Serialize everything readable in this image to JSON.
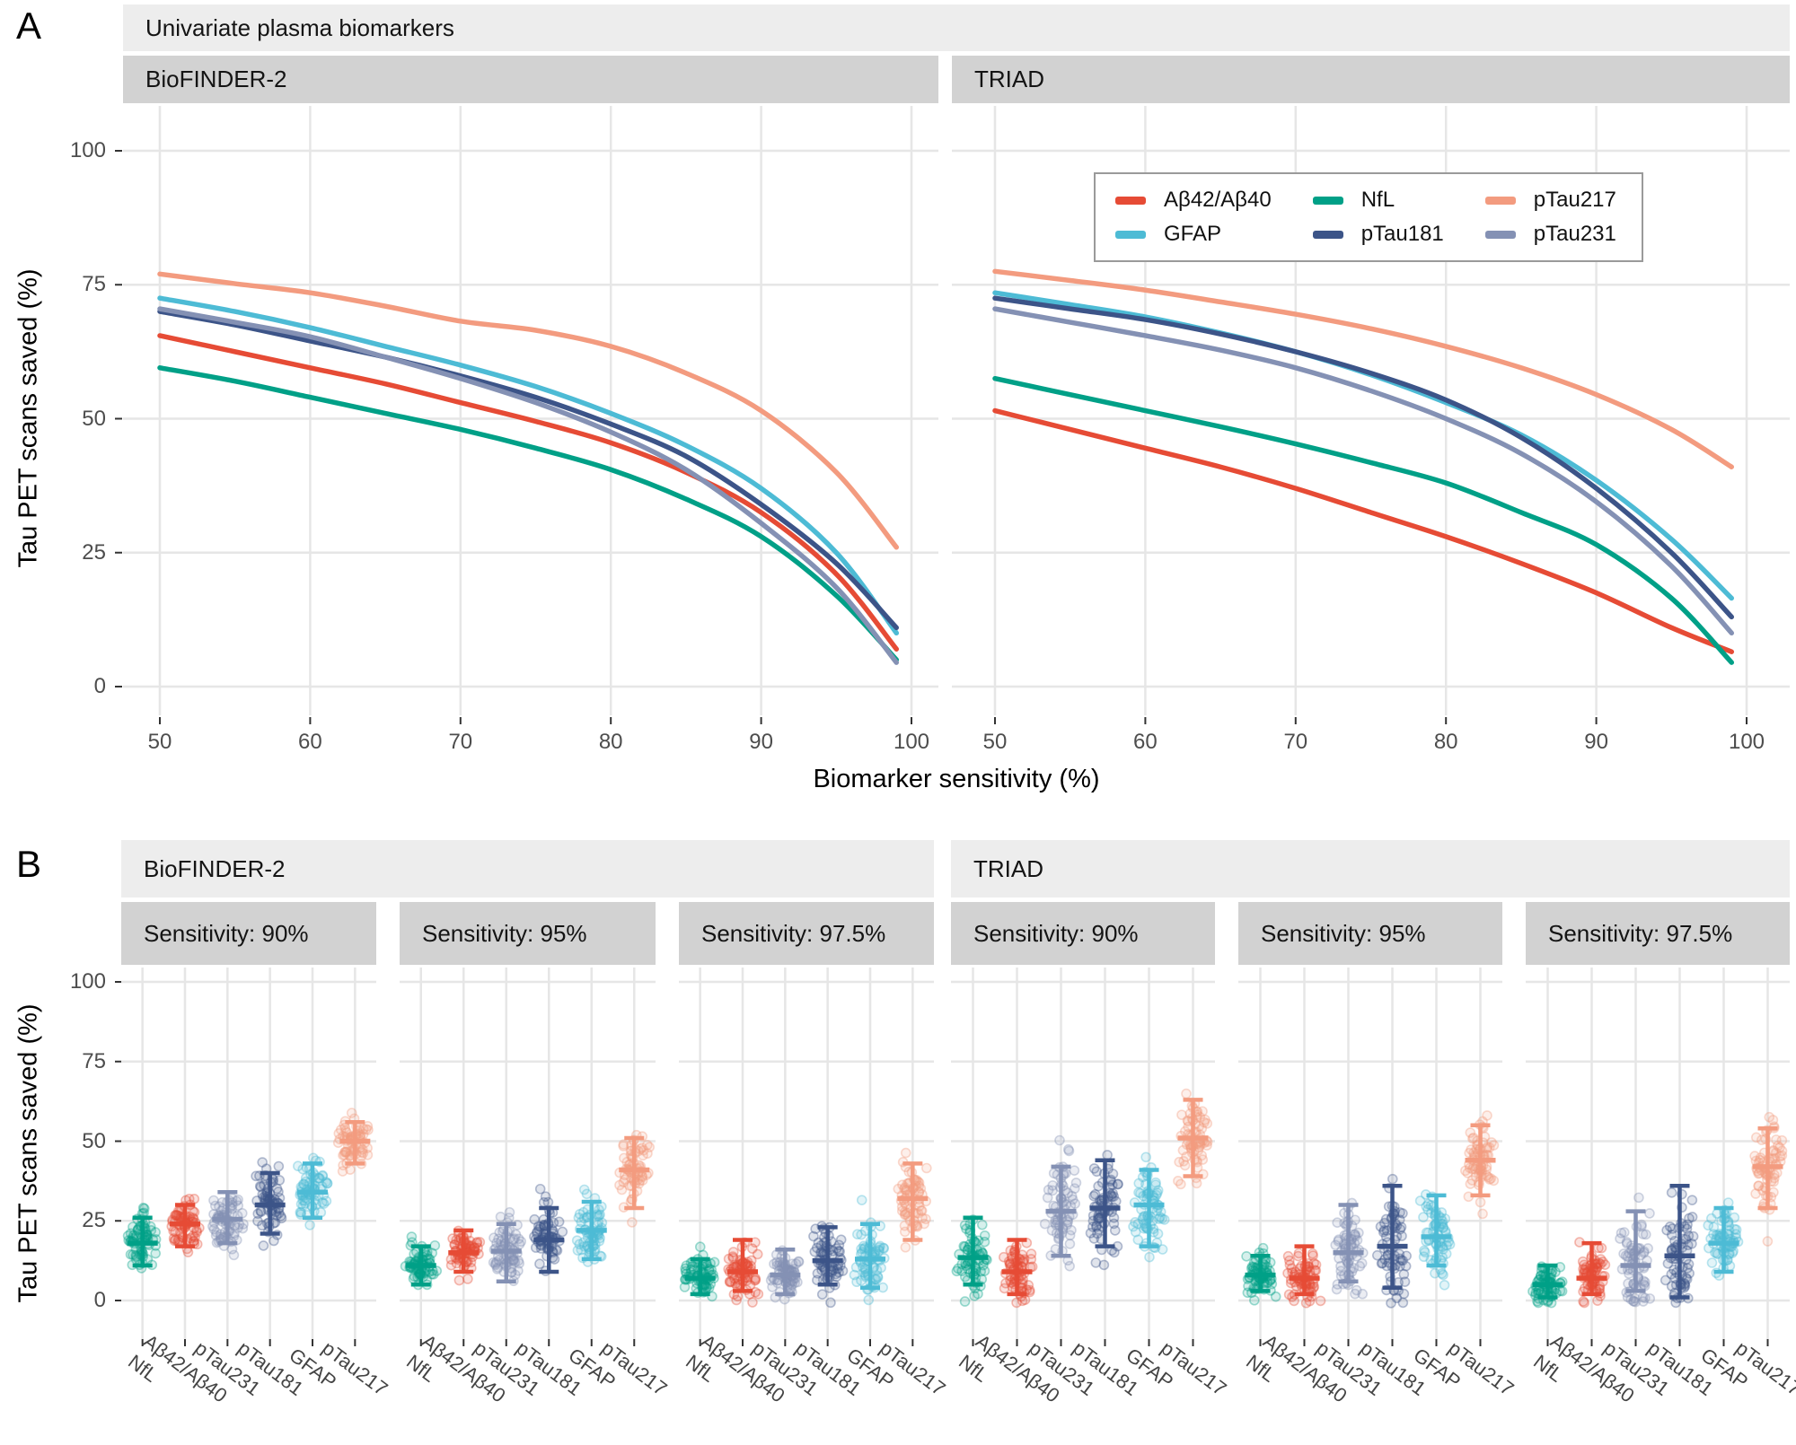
{
  "figure": {
    "panel_a_label": "A",
    "panel_b_label": "B"
  },
  "chart_data": [
    {
      "type": "line",
      "panel": "A",
      "outer_strip": "Univariate plasma biomarkers",
      "xlabel": "Biomarker sensitivity (%)",
      "ylabel": "Tau PET scans saved (%)",
      "x_ticks": [
        50,
        60,
        70,
        80,
        90,
        100
      ],
      "y_ticks": [
        0,
        25,
        50,
        75,
        100
      ],
      "xlim": [
        47.5,
        102.5
      ],
      "ylim": [
        -3,
        103
      ],
      "grid": "on",
      "legend_position": "top-right inside TRIAD facet",
      "legend": [
        {
          "label": "Aβ42/Aβ40",
          "color": "#E64B35"
        },
        {
          "label": "GFAP",
          "color": "#4DBBD5"
        },
        {
          "label": "NfL",
          "color": "#00A087"
        },
        {
          "label": "pTau181",
          "color": "#3C5488"
        },
        {
          "label": "pTau217",
          "color": "#F39B7F"
        },
        {
          "label": "pTau231",
          "color": "#8491B4"
        }
      ],
      "x": [
        50,
        55,
        60,
        65,
        70,
        75,
        80,
        85,
        90,
        95,
        99
      ],
      "facets": [
        {
          "strip": "BioFINDER-2",
          "series": [
            {
              "name": "Aβ42/Aβ40",
              "color": "#E64B35",
              "values": [
                65.5,
                62.5,
                59.5,
                56.5,
                53,
                49.5,
                45.5,
                40,
                32.5,
                21,
                7
              ]
            },
            {
              "name": "GFAP",
              "color": "#4DBBD5",
              "values": [
                72.5,
                70,
                67,
                63.5,
                60,
                56,
                51,
                45,
                37,
                25,
                10
              ]
            },
            {
              "name": "NfL",
              "color": "#00A087",
              "values": [
                59.5,
                57,
                54,
                51,
                48,
                44.5,
                40.5,
                35,
                28,
                17,
                5
              ]
            },
            {
              "name": "pTau181",
              "color": "#3C5488",
              "values": [
                70,
                67.5,
                64.5,
                61.5,
                58,
                54,
                49,
                43,
                34,
                23,
                11
              ]
            },
            {
              "name": "pTau217",
              "color": "#F39B7F",
              "values": [
                77,
                75.2,
                73.5,
                71,
                68.2,
                66.5,
                63.5,
                58.5,
                51.5,
                40,
                26
              ]
            },
            {
              "name": "pTau231",
              "color": "#8491B4",
              "values": [
                70.5,
                68,
                65.3,
                61.5,
                57.5,
                53,
                47.5,
                40.5,
                30.5,
                18.5,
                4.5
              ]
            }
          ]
        },
        {
          "strip": "TRIAD",
          "series": [
            {
              "name": "Aβ42/Aβ40",
              "color": "#E64B35",
              "values": [
                51.5,
                48,
                44.5,
                41,
                37,
                32.5,
                28,
                23,
                17.5,
                11,
                6.5
              ]
            },
            {
              "name": "GFAP",
              "color": "#4DBBD5",
              "values": [
                73.5,
                71.3,
                69,
                66,
                62.5,
                58.2,
                53,
                47,
                38.5,
                27.5,
                16.5
              ]
            },
            {
              "name": "NfL",
              "color": "#00A087",
              "values": [
                57.5,
                54.5,
                51.5,
                48.5,
                45.3,
                41.8,
                38,
                32.5,
                26.5,
                16.5,
                4.5
              ]
            },
            {
              "name": "pTau181",
              "color": "#3C5488",
              "values": [
                72.5,
                70.5,
                68.5,
                65.8,
                62.5,
                58.5,
                53.5,
                46.5,
                37,
                25,
                13
              ]
            },
            {
              "name": "pTau217",
              "color": "#F39B7F",
              "values": [
                77.5,
                75.8,
                74,
                71.8,
                69.5,
                66.8,
                63.5,
                59.5,
                54.5,
                48,
                41
              ]
            },
            {
              "name": "pTau231",
              "color": "#8491B4",
              "values": [
                70.5,
                68,
                65.5,
                62.8,
                59.5,
                55.2,
                50,
                43.5,
                34.5,
                22.5,
                10
              ]
            }
          ]
        }
      ]
    },
    {
      "type": "scatter-errorbar",
      "panel": "B",
      "ylabel": "Tau PET scans saved (%)",
      "y_ticks": [
        0,
        25,
        50,
        75,
        100
      ],
      "ylim": [
        -5,
        105
      ],
      "grid": "on",
      "categories": [
        "NfL",
        "Aβ42/Aβ40",
        "pTau231",
        "pTau181",
        "GFAP",
        "pTau217"
      ],
      "colors": {
        "NfL": "#00A087",
        "Aβ42/Aβ40": "#E64B35",
        "pTau231": "#8491B4",
        "pTau181": "#3C5488",
        "GFAP": "#4DBBD5",
        "pTau217": "#F39B7F"
      },
      "cohorts": [
        {
          "strip": "BioFINDER-2",
          "facets": [
            {
              "strip": "Sensitivity: 90%",
              "stats": [
                {
                  "name": "NfL",
                  "mean": 18,
                  "lo": 11,
                  "hi": 26
                },
                {
                  "name": "Aβ42/Aβ40",
                  "mean": 24,
                  "lo": 17,
                  "hi": 30
                },
                {
                  "name": "pTau231",
                  "mean": 25.5,
                  "lo": 18,
                  "hi": 34
                },
                {
                  "name": "pTau181",
                  "mean": 30,
                  "lo": 21,
                  "hi": 40
                },
                {
                  "name": "GFAP",
                  "mean": 34,
                  "lo": 26,
                  "hi": 43
                },
                {
                  "name": "pTau217",
                  "mean": 50,
                  "lo": 43,
                  "hi": 56
                }
              ]
            },
            {
              "strip": "Sensitivity: 95%",
              "stats": [
                {
                  "name": "NfL",
                  "mean": 11,
                  "lo": 5,
                  "hi": 17
                },
                {
                  "name": "Aβ42/Aβ40",
                  "mean": 15,
                  "lo": 9,
                  "hi": 22
                },
                {
                  "name": "pTau231",
                  "mean": 15.5,
                  "lo": 6,
                  "hi": 24
                },
                {
                  "name": "pTau181",
                  "mean": 19,
                  "lo": 9,
                  "hi": 29
                },
                {
                  "name": "GFAP",
                  "mean": 22,
                  "lo": 13,
                  "hi": 31
                },
                {
                  "name": "pTau217",
                  "mean": 41,
                  "lo": 29,
                  "hi": 51
                }
              ]
            },
            {
              "strip": "Sensitivity: 97.5%",
              "stats": [
                {
                  "name": "NfL",
                  "mean": 7,
                  "lo": 2,
                  "hi": 13
                },
                {
                  "name": "Aβ42/Aβ40",
                  "mean": 9,
                  "lo": 3,
                  "hi": 19
                },
                {
                  "name": "pTau231",
                  "mean": 8,
                  "lo": 2,
                  "hi": 16
                },
                {
                  "name": "pTau181",
                  "mean": 12.5,
                  "lo": 5,
                  "hi": 23
                },
                {
                  "name": "GFAP",
                  "mean": 13,
                  "lo": 4,
                  "hi": 24
                },
                {
                  "name": "pTau217",
                  "mean": 32,
                  "lo": 19,
                  "hi": 43
                }
              ]
            }
          ]
        },
        {
          "strip": "TRIAD",
          "facets": [
            {
              "strip": "Sensitivity: 90%",
              "stats": [
                {
                  "name": "NfL",
                  "mean": 13.5,
                  "lo": 5,
                  "hi": 26
                },
                {
                  "name": "Aβ42/Aβ40",
                  "mean": 9,
                  "lo": 2,
                  "hi": 19
                },
                {
                  "name": "pTau231",
                  "mean": 28,
                  "lo": 14,
                  "hi": 42
                },
                {
                  "name": "pTau181",
                  "mean": 29,
                  "lo": 17,
                  "hi": 44
                },
                {
                  "name": "GFAP",
                  "mean": 30,
                  "lo": 17,
                  "hi": 41
                },
                {
                  "name": "pTau217",
                  "mean": 51,
                  "lo": 39,
                  "hi": 63
                }
              ]
            },
            {
              "strip": "Sensitivity: 95%",
              "stats": [
                {
                  "name": "NfL",
                  "mean": 8,
                  "lo": 3,
                  "hi": 14
                },
                {
                  "name": "Aβ42/Aβ40",
                  "mean": 7,
                  "lo": 2,
                  "hi": 17
                },
                {
                  "name": "pTau231",
                  "mean": 15,
                  "lo": 6,
                  "hi": 30
                },
                {
                  "name": "pTau181",
                  "mean": 17,
                  "lo": 4,
                  "hi": 36
                },
                {
                  "name": "GFAP",
                  "mean": 20,
                  "lo": 11,
                  "hi": 33
                },
                {
                  "name": "pTau217",
                  "mean": 44,
                  "lo": 33,
                  "hi": 55
                }
              ]
            },
            {
              "strip": "Sensitivity: 97.5%",
              "stats": [
                {
                  "name": "NfL",
                  "mean": 5,
                  "lo": 1,
                  "hi": 11
                },
                {
                  "name": "Aβ42/Aβ40",
                  "mean": 7,
                  "lo": 2,
                  "hi": 18
                },
                {
                  "name": "pTau231",
                  "mean": 11,
                  "lo": 3,
                  "hi": 28
                },
                {
                  "name": "pTau181",
                  "mean": 14,
                  "lo": 1,
                  "hi": 36
                },
                {
                  "name": "GFAP",
                  "mean": 18,
                  "lo": 9,
                  "hi": 29
                },
                {
                  "name": "pTau217",
                  "mean": 42,
                  "lo": 29,
                  "hi": 54
                }
              ]
            }
          ]
        }
      ]
    }
  ]
}
